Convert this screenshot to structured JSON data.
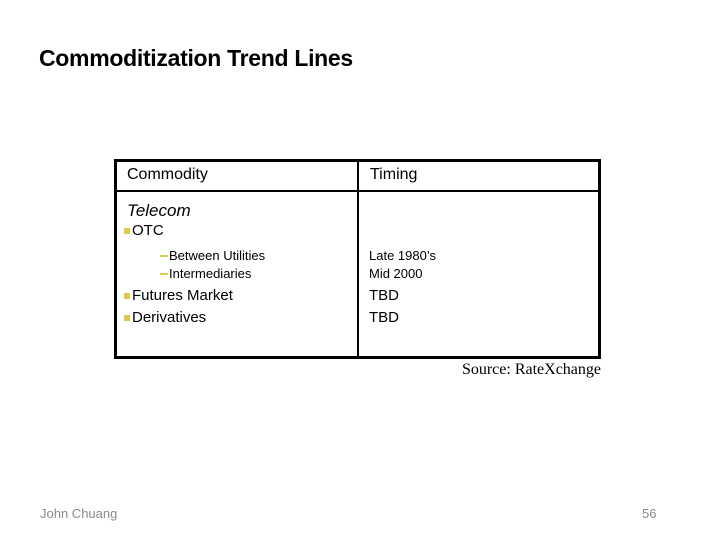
{
  "slide": {
    "title": "Commoditization Trend Lines",
    "source": "Source: RateXchange",
    "footer": {
      "author": "John Chuang",
      "page_number": "56"
    }
  },
  "table": {
    "headers": [
      "Commodity",
      "Timing"
    ],
    "rows": [
      {
        "commodity": "Telecom",
        "timing": "",
        "bullet": "none",
        "indent": 0,
        "style": "italic-heading"
      },
      {
        "commodity": "OTC",
        "timing": "",
        "bullet": "square",
        "indent": 1,
        "style": "bullet-item"
      },
      {
        "commodity": "Between Utilities",
        "timing": "Late 1980’s",
        "bullet": "dash",
        "indent": 2,
        "style": "sub-item"
      },
      {
        "commodity": "Intermediaries",
        "timing": "Mid 2000",
        "bullet": "dash",
        "indent": 2,
        "style": "sub-item"
      },
      {
        "commodity": "Futures Market",
        "timing": "TBD",
        "bullet": "square",
        "indent": 1,
        "style": "bullet-item"
      },
      {
        "commodity": "Derivatives",
        "timing": "TBD",
        "bullet": "square",
        "indent": 1,
        "style": "bullet-item"
      }
    ]
  },
  "icons": {
    "square_bullet": "■",
    "dash_bullet": "–"
  },
  "colors": {
    "bullet_yellow": "#dccb4a",
    "dash_yellow": "#d8cb52",
    "text_black": "#000000",
    "footer_gray": "#8a8a8a",
    "background": "#ffffff"
  }
}
